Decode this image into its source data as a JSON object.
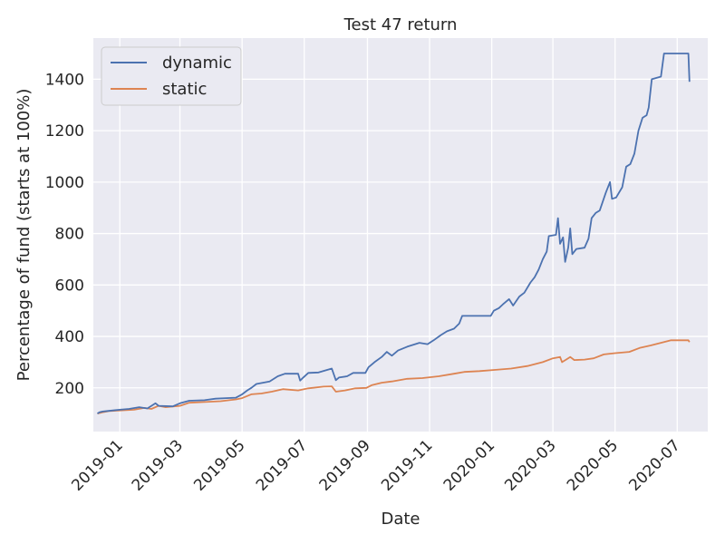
{
  "chart_data": {
    "type": "line",
    "title": "Test 47 return",
    "xlabel": "Date",
    "ylabel": "Percentage of fund (starts at 100%)",
    "xlim": [
      "2018-12-06",
      "2020-07-31"
    ],
    "ylim": [
      30,
      1560
    ],
    "y_ticks": [
      200,
      400,
      600,
      800,
      1000,
      1200,
      1400
    ],
    "x_ticks": [
      "2019-01",
      "2019-03",
      "2019-05",
      "2019-07",
      "2019-09",
      "2019-11",
      "2020-01",
      "2020-03",
      "2020-05",
      "2020-07"
    ],
    "x_tick_dates": [
      "2019-01-01",
      "2019-03-01",
      "2019-05-01",
      "2019-07-01",
      "2019-09-01",
      "2019-11-01",
      "2020-01-01",
      "2020-03-01",
      "2020-05-01",
      "2020-07-01"
    ],
    "grid": true,
    "legend": "upper-left",
    "background": "#eaeaf2",
    "series": [
      {
        "name": "dynamic",
        "color": "#4c72b0",
        "points": [
          [
            "2018-12-10",
            100
          ],
          [
            "2018-12-12",
            105
          ],
          [
            "2018-12-15",
            108
          ],
          [
            "2018-12-20",
            110
          ],
          [
            "2019-01-01",
            115
          ],
          [
            "2019-01-10",
            118
          ],
          [
            "2019-01-20",
            125
          ],
          [
            "2019-01-28",
            120
          ],
          [
            "2019-02-05",
            140
          ],
          [
            "2019-02-08",
            130
          ],
          [
            "2019-02-22",
            128
          ],
          [
            "2019-03-01",
            140
          ],
          [
            "2019-03-10",
            150
          ],
          [
            "2019-03-25",
            152
          ],
          [
            "2019-04-05",
            158
          ],
          [
            "2019-04-25",
            162
          ],
          [
            "2019-05-01",
            175
          ],
          [
            "2019-05-06",
            190
          ],
          [
            "2019-05-10",
            200
          ],
          [
            "2019-05-15",
            215
          ],
          [
            "2019-05-28",
            225
          ],
          [
            "2019-06-05",
            245
          ],
          [
            "2019-06-12",
            255
          ],
          [
            "2019-06-25",
            255
          ],
          [
            "2019-06-27",
            228
          ],
          [
            "2019-06-30",
            240
          ],
          [
            "2019-07-05",
            258
          ],
          [
            "2019-07-15",
            260
          ],
          [
            "2019-07-28",
            275
          ],
          [
            "2019-08-01",
            230
          ],
          [
            "2019-08-04",
            240
          ],
          [
            "2019-08-12",
            245
          ],
          [
            "2019-08-18",
            258
          ],
          [
            "2019-08-30",
            258
          ],
          [
            "2019-09-02",
            280
          ],
          [
            "2019-09-08",
            300
          ],
          [
            "2019-09-15",
            320
          ],
          [
            "2019-09-20",
            340
          ],
          [
            "2019-09-25",
            325
          ],
          [
            "2019-10-01",
            345
          ],
          [
            "2019-10-10",
            360
          ],
          [
            "2019-10-22",
            375
          ],
          [
            "2019-10-30",
            370
          ],
          [
            "2019-11-05",
            385
          ],
          [
            "2019-11-12",
            405
          ],
          [
            "2019-11-18",
            420
          ],
          [
            "2019-11-25",
            430
          ],
          [
            "2019-11-30",
            450
          ],
          [
            "2019-12-03",
            480
          ],
          [
            "2019-12-15",
            480
          ],
          [
            "2019-12-31",
            480
          ],
          [
            "2020-01-03",
            500
          ],
          [
            "2020-01-08",
            510
          ],
          [
            "2020-01-12",
            525
          ],
          [
            "2020-01-18",
            545
          ],
          [
            "2020-01-22",
            520
          ],
          [
            "2020-01-28",
            555
          ],
          [
            "2020-02-02",
            570
          ],
          [
            "2020-02-08",
            610
          ],
          [
            "2020-02-12",
            630
          ],
          [
            "2020-02-16",
            660
          ],
          [
            "2020-02-20",
            700
          ],
          [
            "2020-02-24",
            730
          ],
          [
            "2020-02-26",
            790
          ],
          [
            "2020-03-04",
            795
          ],
          [
            "2020-03-06",
            860
          ],
          [
            "2020-03-08",
            760
          ],
          [
            "2020-03-11",
            785
          ],
          [
            "2020-03-13",
            690
          ],
          [
            "2020-03-16",
            745
          ],
          [
            "2020-03-18",
            820
          ],
          [
            "2020-03-20",
            720
          ],
          [
            "2020-03-24",
            740
          ],
          [
            "2020-04-01",
            745
          ],
          [
            "2020-04-05",
            780
          ],
          [
            "2020-04-08",
            860
          ],
          [
            "2020-04-12",
            880
          ],
          [
            "2020-04-16",
            890
          ],
          [
            "2020-04-22",
            960
          ],
          [
            "2020-04-26",
            1000
          ],
          [
            "2020-04-28",
            935
          ],
          [
            "2020-05-02",
            940
          ],
          [
            "2020-05-08",
            980
          ],
          [
            "2020-05-12",
            1060
          ],
          [
            "2020-05-16",
            1070
          ],
          [
            "2020-05-20",
            1110
          ],
          [
            "2020-05-24",
            1200
          ],
          [
            "2020-05-28",
            1250
          ],
          [
            "2020-06-01",
            1260
          ],
          [
            "2020-06-03",
            1290
          ],
          [
            "2020-06-06",
            1400
          ],
          [
            "2020-06-15",
            1410
          ],
          [
            "2020-06-18",
            1500
          ],
          [
            "2020-07-07",
            1500
          ],
          [
            "2020-07-12",
            1500
          ],
          [
            "2020-07-13",
            1390
          ]
        ]
      },
      {
        "name": "static",
        "color": "#dd8452",
        "points": [
          [
            "2018-12-10",
            100
          ],
          [
            "2018-12-15",
            105
          ],
          [
            "2018-12-22",
            110
          ],
          [
            "2019-01-01",
            112
          ],
          [
            "2019-01-15",
            115
          ],
          [
            "2019-01-25",
            122
          ],
          [
            "2019-02-01",
            118
          ],
          [
            "2019-02-08",
            130
          ],
          [
            "2019-02-15",
            125
          ],
          [
            "2019-03-01",
            130
          ],
          [
            "2019-03-10",
            142
          ],
          [
            "2019-03-25",
            145
          ],
          [
            "2019-04-10",
            148
          ],
          [
            "2019-04-25",
            155
          ],
          [
            "2019-05-01",
            160
          ],
          [
            "2019-05-10",
            175
          ],
          [
            "2019-05-20",
            178
          ],
          [
            "2019-05-30",
            185
          ],
          [
            "2019-06-10",
            195
          ],
          [
            "2019-06-25",
            190
          ],
          [
            "2019-07-05",
            198
          ],
          [
            "2019-07-20",
            205
          ],
          [
            "2019-07-28",
            206
          ],
          [
            "2019-08-01",
            185
          ],
          [
            "2019-08-10",
            190
          ],
          [
            "2019-08-20",
            198
          ],
          [
            "2019-08-31",
            200
          ],
          [
            "2019-09-05",
            210
          ],
          [
            "2019-09-15",
            220
          ],
          [
            "2019-09-25",
            225
          ],
          [
            "2019-10-10",
            235
          ],
          [
            "2019-10-25",
            238
          ],
          [
            "2019-11-10",
            245
          ],
          [
            "2019-11-25",
            255
          ],
          [
            "2019-12-05",
            262
          ],
          [
            "2019-12-20",
            265
          ],
          [
            "2020-01-05",
            270
          ],
          [
            "2020-01-20",
            275
          ],
          [
            "2020-02-05",
            285
          ],
          [
            "2020-02-20",
            300
          ],
          [
            "2020-03-01",
            315
          ],
          [
            "2020-03-08",
            320
          ],
          [
            "2020-03-10",
            300
          ],
          [
            "2020-03-14",
            310
          ],
          [
            "2020-03-18",
            320
          ],
          [
            "2020-03-22",
            308
          ],
          [
            "2020-04-01",
            310
          ],
          [
            "2020-04-10",
            315
          ],
          [
            "2020-04-20",
            330
          ],
          [
            "2020-05-01",
            335
          ],
          [
            "2020-05-15",
            340
          ],
          [
            "2020-05-25",
            355
          ],
          [
            "2020-06-05",
            365
          ],
          [
            "2020-06-15",
            375
          ],
          [
            "2020-06-25",
            385
          ],
          [
            "2020-07-05",
            385
          ],
          [
            "2020-07-12",
            385
          ],
          [
            "2020-07-13",
            378
          ]
        ]
      }
    ]
  }
}
